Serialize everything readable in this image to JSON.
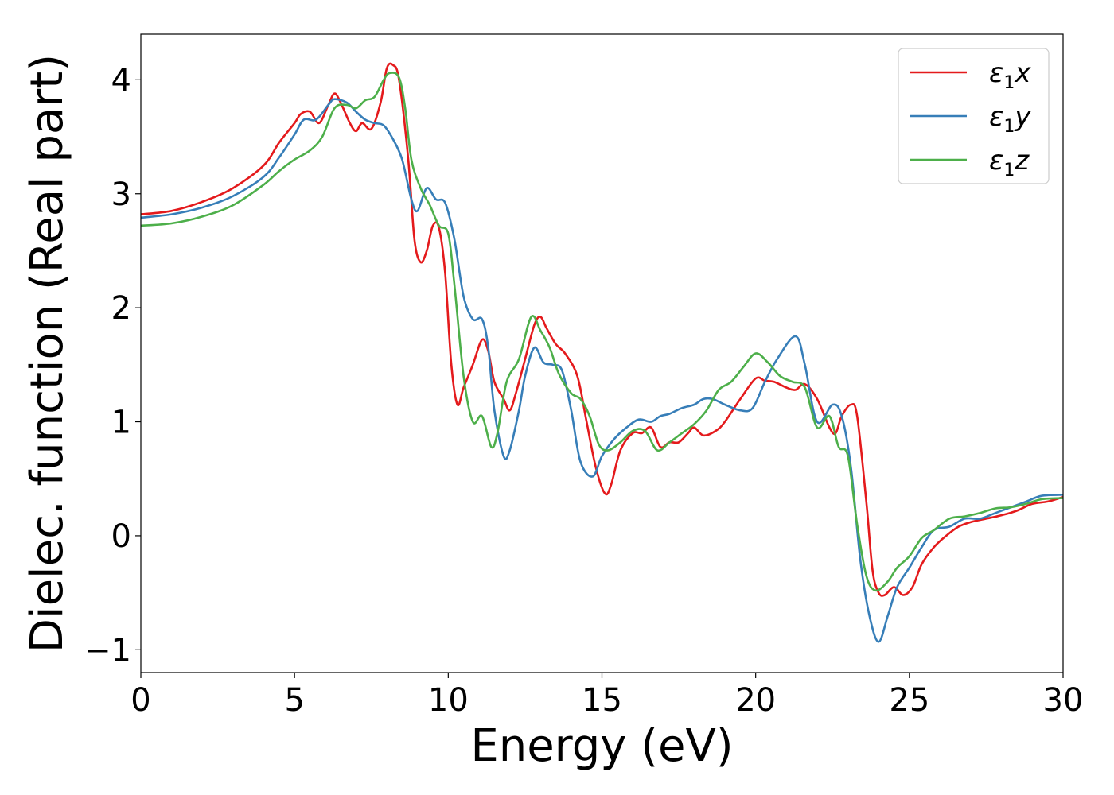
{
  "chart_data": {
    "type": "line",
    "xlabel": "Energy (eV)",
    "ylabel": "Dielec. function (Real part)",
    "xlim": [
      0,
      30
    ],
    "ylim": [
      -1.2,
      4.4
    ],
    "x_ticks": [
      0,
      5,
      10,
      15,
      20,
      25,
      30
    ],
    "y_ticks": [
      -1,
      0,
      1,
      2,
      3,
      4
    ],
    "y_tick_labels": [
      "−1",
      "0",
      "1",
      "2",
      "3",
      "4"
    ],
    "x_tick_labels": [
      "0",
      "5",
      "10",
      "15",
      "20",
      "25",
      "30"
    ],
    "grid": false,
    "legend_position": "top-right",
    "series": [
      {
        "name": "ε1x",
        "legend": {
          "main": "ε",
          "sub": "1",
          "tail": "x"
        },
        "color": "#e41a1c",
        "points": [
          [
            0,
            2.82
          ],
          [
            1,
            2.85
          ],
          [
            2,
            2.93
          ],
          [
            3,
            3.05
          ],
          [
            4,
            3.25
          ],
          [
            4.5,
            3.45
          ],
          [
            5,
            3.62
          ],
          [
            5.2,
            3.7
          ],
          [
            5.5,
            3.72
          ],
          [
            5.8,
            3.62
          ],
          [
            6.1,
            3.78
          ],
          [
            6.3,
            3.88
          ],
          [
            6.5,
            3.8
          ],
          [
            6.8,
            3.62
          ],
          [
            7,
            3.55
          ],
          [
            7.2,
            3.62
          ],
          [
            7.5,
            3.57
          ],
          [
            7.8,
            3.8
          ],
          [
            8,
            4.1
          ],
          [
            8.2,
            4.13
          ],
          [
            8.4,
            4.0
          ],
          [
            8.7,
            3.3
          ],
          [
            8.9,
            2.6
          ],
          [
            9.1,
            2.4
          ],
          [
            9.3,
            2.5
          ],
          [
            9.5,
            2.72
          ],
          [
            9.7,
            2.7
          ],
          [
            9.9,
            2.3
          ],
          [
            10.1,
            1.5
          ],
          [
            10.3,
            1.15
          ],
          [
            10.5,
            1.3
          ],
          [
            10.8,
            1.5
          ],
          [
            11.1,
            1.72
          ],
          [
            11.3,
            1.62
          ],
          [
            11.5,
            1.35
          ],
          [
            11.8,
            1.2
          ],
          [
            12,
            1.1
          ],
          [
            12.2,
            1.25
          ],
          [
            12.5,
            1.55
          ],
          [
            12.8,
            1.85
          ],
          [
            13,
            1.92
          ],
          [
            13.2,
            1.82
          ],
          [
            13.5,
            1.68
          ],
          [
            13.8,
            1.6
          ],
          [
            14.2,
            1.4
          ],
          [
            14.5,
            1.0
          ],
          [
            14.8,
            0.6
          ],
          [
            15.1,
            0.37
          ],
          [
            15.3,
            0.45
          ],
          [
            15.6,
            0.75
          ],
          [
            16,
            0.9
          ],
          [
            16.3,
            0.9
          ],
          [
            16.6,
            0.95
          ],
          [
            16.9,
            0.78
          ],
          [
            17.2,
            0.82
          ],
          [
            17.5,
            0.82
          ],
          [
            17.8,
            0.9
          ],
          [
            18,
            0.95
          ],
          [
            18.3,
            0.88
          ],
          [
            18.7,
            0.92
          ],
          [
            19,
            1.0
          ],
          [
            19.5,
            1.2
          ],
          [
            20,
            1.38
          ],
          [
            20.3,
            1.36
          ],
          [
            20.6,
            1.35
          ],
          [
            21,
            1.3
          ],
          [
            21.3,
            1.28
          ],
          [
            21.6,
            1.33
          ],
          [
            22,
            1.2
          ],
          [
            22.4,
            0.95
          ],
          [
            22.6,
            0.9
          ],
          [
            22.8,
            1.05
          ],
          [
            23.1,
            1.15
          ],
          [
            23.3,
            1.05
          ],
          [
            23.6,
            0.3
          ],
          [
            23.8,
            -0.3
          ],
          [
            24,
            -0.5
          ],
          [
            24.2,
            -0.52
          ],
          [
            24.5,
            -0.45
          ],
          [
            24.8,
            -0.52
          ],
          [
            25.1,
            -0.45
          ],
          [
            25.4,
            -0.25
          ],
          [
            25.8,
            -0.1
          ],
          [
            26.2,
            0.0
          ],
          [
            26.6,
            0.08
          ],
          [
            27,
            0.12
          ],
          [
            27.5,
            0.15
          ],
          [
            28,
            0.18
          ],
          [
            28.5,
            0.22
          ],
          [
            29,
            0.28
          ],
          [
            29.5,
            0.3
          ],
          [
            30,
            0.34
          ]
        ]
      },
      {
        "name": "ε1y",
        "legend": {
          "main": "ε",
          "sub": "1",
          "tail": "y"
        },
        "color": "#377eb8",
        "points": [
          [
            0,
            2.79
          ],
          [
            1,
            2.82
          ],
          [
            2,
            2.88
          ],
          [
            3,
            2.98
          ],
          [
            4,
            3.15
          ],
          [
            4.5,
            3.32
          ],
          [
            5,
            3.52
          ],
          [
            5.3,
            3.65
          ],
          [
            5.7,
            3.65
          ],
          [
            6.1,
            3.78
          ],
          [
            6.3,
            3.83
          ],
          [
            6.7,
            3.8
          ],
          [
            7,
            3.72
          ],
          [
            7.3,
            3.65
          ],
          [
            7.6,
            3.62
          ],
          [
            7.9,
            3.6
          ],
          [
            8.2,
            3.48
          ],
          [
            8.5,
            3.3
          ],
          [
            8.8,
            2.95
          ],
          [
            9,
            2.85
          ],
          [
            9.3,
            3.05
          ],
          [
            9.6,
            2.95
          ],
          [
            9.9,
            2.92
          ],
          [
            10.2,
            2.6
          ],
          [
            10.5,
            2.1
          ],
          [
            10.8,
            1.9
          ],
          [
            11.1,
            1.9
          ],
          [
            11.3,
            1.65
          ],
          [
            11.5,
            1.1
          ],
          [
            11.8,
            0.7
          ],
          [
            12,
            0.75
          ],
          [
            12.3,
            1.1
          ],
          [
            12.5,
            1.4
          ],
          [
            12.8,
            1.65
          ],
          [
            13.1,
            1.52
          ],
          [
            13.4,
            1.5
          ],
          [
            13.7,
            1.45
          ],
          [
            14,
            1.1
          ],
          [
            14.3,
            0.65
          ],
          [
            14.7,
            0.52
          ],
          [
            15,
            0.7
          ],
          [
            15.4,
            0.85
          ],
          [
            15.8,
            0.95
          ],
          [
            16.2,
            1.02
          ],
          [
            16.6,
            1.0
          ],
          [
            16.9,
            1.05
          ],
          [
            17.2,
            1.07
          ],
          [
            17.6,
            1.12
          ],
          [
            18.0,
            1.15
          ],
          [
            18.3,
            1.2
          ],
          [
            18.6,
            1.2
          ],
          [
            19,
            1.15
          ],
          [
            19.5,
            1.1
          ],
          [
            19.9,
            1.12
          ],
          [
            20.3,
            1.35
          ],
          [
            20.7,
            1.55
          ],
          [
            21.3,
            1.75
          ],
          [
            21.6,
            1.5
          ],
          [
            22,
            1.0
          ],
          [
            22.5,
            1.15
          ],
          [
            22.8,
            1.05
          ],
          [
            23.1,
            0.6
          ],
          [
            23.4,
            -0.2
          ],
          [
            23.7,
            -0.7
          ],
          [
            24,
            -0.93
          ],
          [
            24.3,
            -0.7
          ],
          [
            24.6,
            -0.45
          ],
          [
            25,
            -0.28
          ],
          [
            25.4,
            -0.1
          ],
          [
            25.8,
            0.05
          ],
          [
            26.3,
            0.08
          ],
          [
            26.8,
            0.15
          ],
          [
            27.3,
            0.15
          ],
          [
            27.8,
            0.2
          ],
          [
            28.3,
            0.25
          ],
          [
            28.8,
            0.3
          ],
          [
            29.3,
            0.35
          ],
          [
            30,
            0.36
          ]
        ]
      },
      {
        "name": "ε1z",
        "legend": {
          "main": "ε",
          "sub": "1",
          "tail": "z"
        },
        "color": "#4daf4a",
        "points": [
          [
            0,
            2.72
          ],
          [
            1,
            2.74
          ],
          [
            2,
            2.8
          ],
          [
            3,
            2.9
          ],
          [
            4,
            3.08
          ],
          [
            4.5,
            3.2
          ],
          [
            5,
            3.3
          ],
          [
            5.5,
            3.38
          ],
          [
            5.9,
            3.5
          ],
          [
            6.3,
            3.75
          ],
          [
            6.7,
            3.78
          ],
          [
            7,
            3.75
          ],
          [
            7.3,
            3.82
          ],
          [
            7.6,
            3.85
          ],
          [
            7.9,
            4.0
          ],
          [
            8.1,
            4.06
          ],
          [
            8.4,
            4.02
          ],
          [
            8.6,
            3.75
          ],
          [
            8.8,
            3.3
          ],
          [
            9.1,
            3.05
          ],
          [
            9.4,
            2.9
          ],
          [
            9.7,
            2.72
          ],
          [
            10,
            2.65
          ],
          [
            10.2,
            2.2
          ],
          [
            10.5,
            1.4
          ],
          [
            10.8,
            1.0
          ],
          [
            11.1,
            1.05
          ],
          [
            11.4,
            0.78
          ],
          [
            11.6,
            0.9
          ],
          [
            11.9,
            1.35
          ],
          [
            12.3,
            1.55
          ],
          [
            12.7,
            1.92
          ],
          [
            13,
            1.8
          ],
          [
            13.3,
            1.65
          ],
          [
            13.6,
            1.42
          ],
          [
            14,
            1.25
          ],
          [
            14.3,
            1.2
          ],
          [
            14.6,
            1.05
          ],
          [
            14.9,
            0.8
          ],
          [
            15.2,
            0.75
          ],
          [
            15.6,
            0.82
          ],
          [
            16,
            0.92
          ],
          [
            16.4,
            0.92
          ],
          [
            16.8,
            0.75
          ],
          [
            17.2,
            0.82
          ],
          [
            17.6,
            0.9
          ],
          [
            18,
            0.98
          ],
          [
            18.4,
            1.1
          ],
          [
            18.8,
            1.28
          ],
          [
            19.2,
            1.35
          ],
          [
            19.6,
            1.48
          ],
          [
            20,
            1.6
          ],
          [
            20.4,
            1.52
          ],
          [
            20.8,
            1.4
          ],
          [
            21.2,
            1.35
          ],
          [
            21.6,
            1.3
          ],
          [
            22,
            0.95
          ],
          [
            22.4,
            1.05
          ],
          [
            22.7,
            0.78
          ],
          [
            23,
            0.7
          ],
          [
            23.3,
            0.1
          ],
          [
            23.6,
            -0.35
          ],
          [
            23.9,
            -0.48
          ],
          [
            24.3,
            -0.4
          ],
          [
            24.6,
            -0.28
          ],
          [
            25,
            -0.18
          ],
          [
            25.4,
            -0.02
          ],
          [
            25.8,
            0.05
          ],
          [
            26.3,
            0.15
          ],
          [
            26.8,
            0.17
          ],
          [
            27.3,
            0.2
          ],
          [
            27.8,
            0.24
          ],
          [
            28.3,
            0.25
          ],
          [
            28.8,
            0.28
          ],
          [
            29.3,
            0.32
          ],
          [
            30,
            0.33
          ]
        ]
      }
    ]
  }
}
